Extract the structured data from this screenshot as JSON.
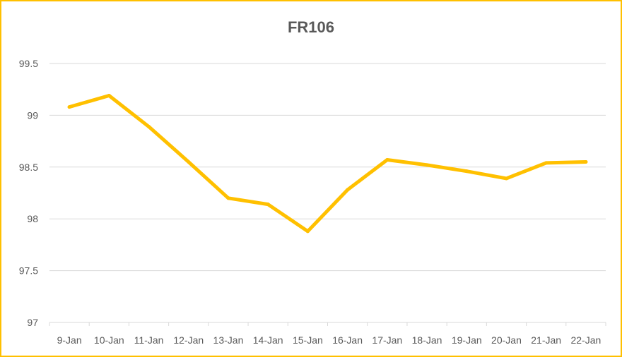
{
  "chart_data": {
    "type": "line",
    "title": "FR106",
    "xlabel": "",
    "ylabel": "",
    "categories": [
      "9-Jan",
      "10-Jan",
      "11-Jan",
      "12-Jan",
      "13-Jan",
      "14-Jan",
      "15-Jan",
      "16-Jan",
      "17-Jan",
      "18-Jan",
      "19-Jan",
      "20-Jan",
      "21-Jan",
      "22-Jan"
    ],
    "series": [
      {
        "values": [
          99.08,
          99.19,
          98.89,
          98.55,
          98.2,
          98.14,
          97.88,
          98.28,
          98.57,
          98.52,
          98.46,
          98.39,
          98.54,
          98.55
        ],
        "color": "#FFC000"
      }
    ],
    "ylim": [
      97,
      99.5
    ],
    "yticks": [
      "97",
      "97.5",
      "98",
      "98.5",
      "99",
      "99.5"
    ],
    "ytick_values": [
      97,
      97.5,
      98,
      98.5,
      99,
      99.5
    ],
    "grid": true,
    "legend": "none"
  }
}
